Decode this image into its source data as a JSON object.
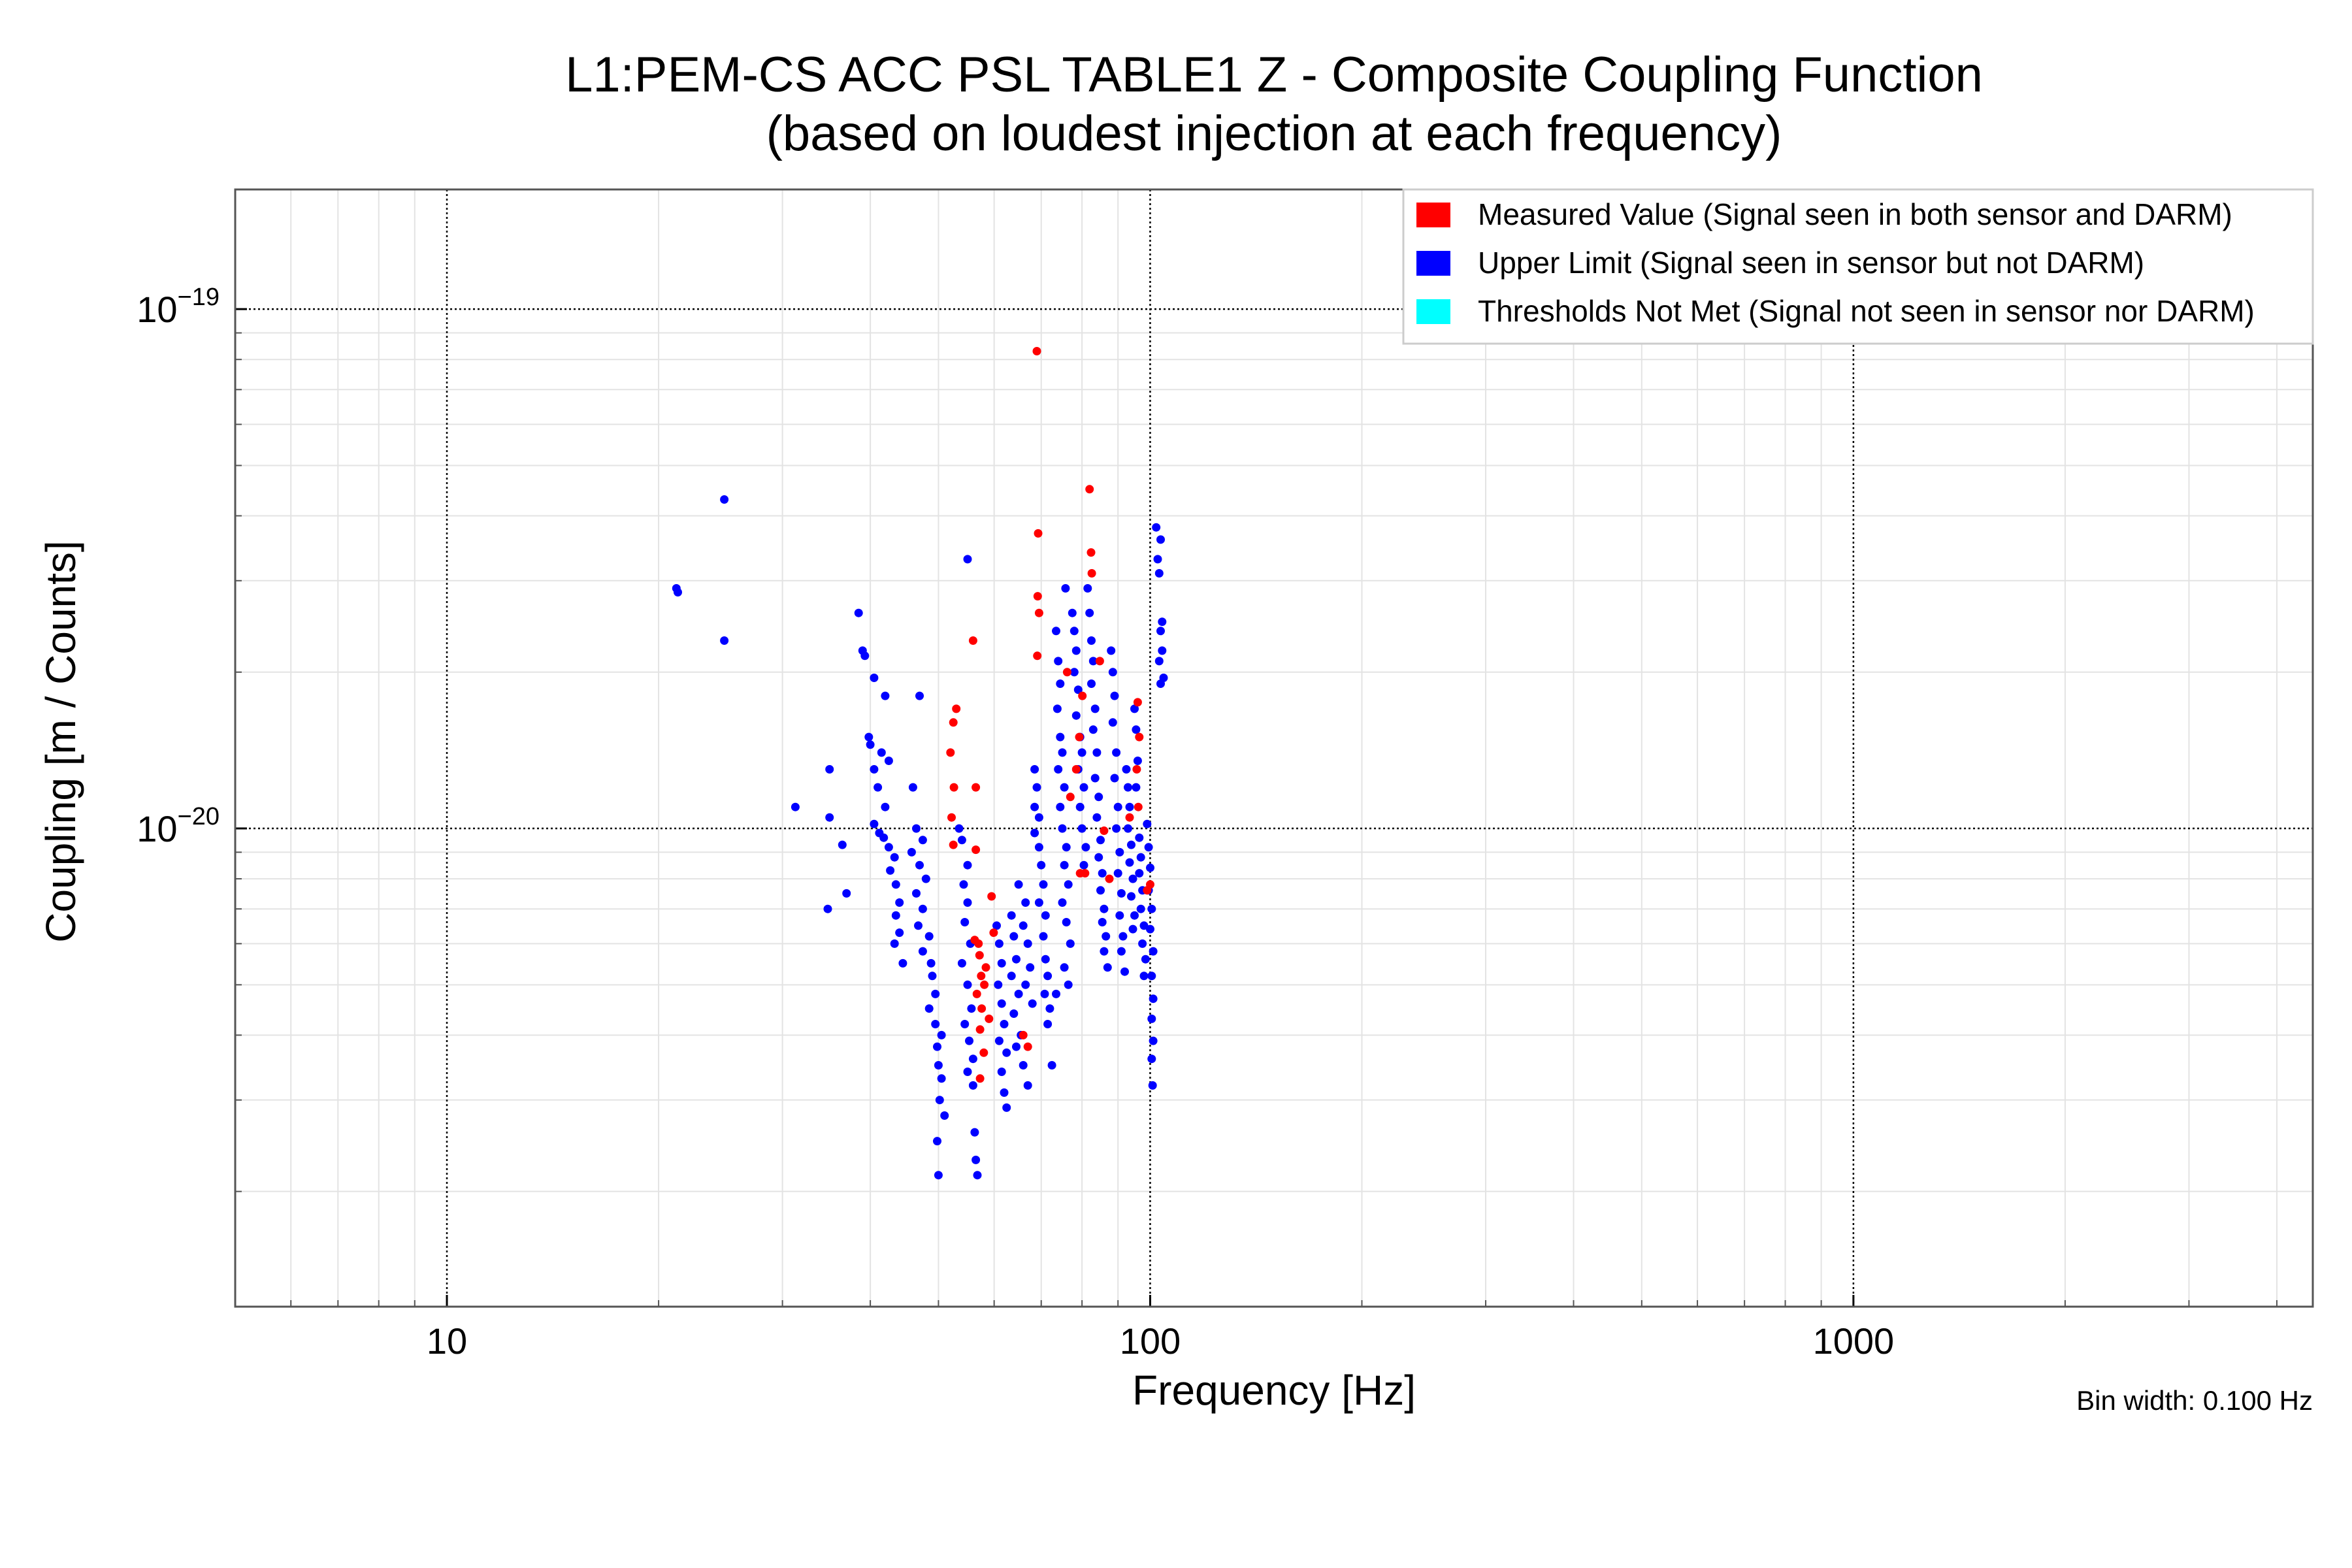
{
  "chart_data": {
    "type": "scatter",
    "title": "L1:PEM-CS ACC PSL TABLE1 Z - Composite Coupling Function",
    "subtitle": "(based on loudest injection at each frequency)",
    "xlabel": "Frequency [Hz]",
    "ylabel": "Coupling [m / Counts]",
    "xscale": "log",
    "yscale": "log",
    "xlim": [
      5,
      4500
    ],
    "ylim": [
      1.2e-21,
      1.7e-19
    ],
    "x_ticks": [
      10,
      100,
      1000
    ],
    "x_tick_labels": [
      "10",
      "100",
      "1000"
    ],
    "y_ticks": [
      1e-20,
      1e-19
    ],
    "y_tick_labels": [
      {
        "base": "10",
        "exp": "−20"
      },
      {
        "base": "10",
        "exp": "−19"
      }
    ],
    "grid": true,
    "legend_position": "top-right",
    "legend": [
      {
        "label": "Measured Value (Signal seen in both sensor and DARM)",
        "color": "#ff0000"
      },
      {
        "label": "Upper Limit (Signal seen in sensor but not DARM)",
        "color": "#0000ff"
      },
      {
        "label": "Thresholds Not Met (Signal not seen in sensor nor DARM)",
        "color": "#00ffff"
      }
    ],
    "annotation": "Bin width: 0.100 Hz",
    "series": [
      {
        "color": "#ff0000",
        "points": [
          [
            69.0,
            8.3e-20
          ],
          [
            82.0,
            4.5e-20
          ],
          [
            69.3,
            3.7e-20
          ],
          [
            82.4,
            3.4e-20
          ],
          [
            82.6,
            3.1e-20
          ],
          [
            69.2,
            2.8e-20
          ],
          [
            69.5,
            2.6e-20
          ],
          [
            56.0,
            2.3e-20
          ],
          [
            69.1,
            2.15e-20
          ],
          [
            76.2,
            2e-20
          ],
          [
            84.8,
            2.1e-20
          ],
          [
            80.1,
            1.8e-20
          ],
          [
            96.0,
            1.75e-20
          ],
          [
            53.0,
            1.7e-20
          ],
          [
            52.5,
            1.6e-20
          ],
          [
            96.5,
            1.5e-20
          ],
          [
            79.3,
            1.5e-20
          ],
          [
            52.0,
            1.4e-20
          ],
          [
            95.7,
            1.3e-20
          ],
          [
            78.5,
            1.3e-20
          ],
          [
            52.6,
            1.2e-20
          ],
          [
            56.5,
            1.2e-20
          ],
          [
            77.0,
            1.15e-20
          ],
          [
            96.2,
            1.1e-20
          ],
          [
            52.2,
            1.05e-20
          ],
          [
            86.0,
            9.9e-21
          ],
          [
            93.5,
            1.05e-20
          ],
          [
            52.5,
            9.3e-21
          ],
          [
            56.5,
            9.1e-21
          ],
          [
            59.5,
            7.4e-21
          ],
          [
            79.5,
            8.2e-21
          ],
          [
            80.8,
            8.2e-21
          ],
          [
            87.5,
            8e-21
          ],
          [
            99.0,
            7.6e-21
          ],
          [
            100.0,
            7.8e-21
          ],
          [
            59.9,
            6.3e-21
          ],
          [
            56.3,
            6.1e-21
          ],
          [
            57.0,
            6e-21
          ],
          [
            57.2,
            5.7e-21
          ],
          [
            58.4,
            5.4e-21
          ],
          [
            57.5,
            5.2e-21
          ],
          [
            58.1,
            5e-21
          ],
          [
            56.7,
            4.8e-21
          ],
          [
            57.6,
            4.5e-21
          ],
          [
            59.0,
            4.3e-21
          ],
          [
            57.3,
            4.1e-21
          ],
          [
            66.0,
            4e-21
          ],
          [
            58.0,
            3.7e-21
          ],
          [
            67.0,
            3.8e-21
          ],
          [
            57.3,
            3.3e-21
          ]
        ]
      },
      {
        "color": "#0000ff",
        "points": [
          [
            24.8,
            4.3e-20
          ],
          [
            21.2,
            2.9e-20
          ],
          [
            21.3,
            2.85e-20
          ],
          [
            24.8,
            2.3e-20
          ],
          [
            38.5,
            2.6e-20
          ],
          [
            39.0,
            2.2e-20
          ],
          [
            39.3,
            2.15e-20
          ],
          [
            40.5,
            1.95e-20
          ],
          [
            42.0,
            1.8e-20
          ],
          [
            39.8,
            1.5e-20
          ],
          [
            40.0,
            1.45e-20
          ],
          [
            41.5,
            1.4e-20
          ],
          [
            42.5,
            1.35e-20
          ],
          [
            40.5,
            1.3e-20
          ],
          [
            35.0,
            1.3e-20
          ],
          [
            41.0,
            1.2e-20
          ],
          [
            42.0,
            1.1e-20
          ],
          [
            31.3,
            1.1e-20
          ],
          [
            35.0,
            1.05e-20
          ],
          [
            40.5,
            1.02e-20
          ],
          [
            41.2,
            9.8e-21
          ],
          [
            41.8,
            9.6e-21
          ],
          [
            42.5,
            9.2e-21
          ],
          [
            43.3,
            8.8e-21
          ],
          [
            36.5,
            9.3e-21
          ],
          [
            42.7,
            8.3e-21
          ],
          [
            43.5,
            7.8e-21
          ],
          [
            44.0,
            7.2e-21
          ],
          [
            37.0,
            7.5e-21
          ],
          [
            34.8,
            7e-21
          ],
          [
            43.5,
            6.8e-21
          ],
          [
            44.0,
            6.3e-21
          ],
          [
            43.3,
            6e-21
          ],
          [
            44.5,
            5.5e-21
          ],
          [
            47.0,
            1.8e-20
          ],
          [
            46.0,
            1.2e-20
          ],
          [
            46.5,
            1e-20
          ],
          [
            47.5,
            9.5e-21
          ],
          [
            45.8,
            9e-21
          ],
          [
            47.0,
            8.5e-21
          ],
          [
            48.0,
            8e-21
          ],
          [
            46.5,
            7.5e-21
          ],
          [
            47.5,
            7e-21
          ],
          [
            46.8,
            6.5e-21
          ],
          [
            48.5,
            6.2e-21
          ],
          [
            47.5,
            5.8e-21
          ],
          [
            48.8,
            5.5e-21
          ],
          [
            49.0,
            5.2e-21
          ],
          [
            49.5,
            4.8e-21
          ],
          [
            48.5,
            4.5e-21
          ],
          [
            49.5,
            4.2e-21
          ],
          [
            50.5,
            4e-21
          ],
          [
            49.8,
            3.8e-21
          ],
          [
            50.0,
            3.5e-21
          ],
          [
            50.5,
            3.3e-21
          ],
          [
            50.2,
            3e-21
          ],
          [
            51.0,
            2.8e-21
          ],
          [
            49.8,
            2.5e-21
          ],
          [
            50.0,
            2.15e-21
          ],
          [
            55.0,
            3.3e-20
          ],
          [
            53.5,
            1e-20
          ],
          [
            54.0,
            9.5e-21
          ],
          [
            55.0,
            8.5e-21
          ],
          [
            54.3,
            7.8e-21
          ],
          [
            55.0,
            7.2e-21
          ],
          [
            54.5,
            6.6e-21
          ],
          [
            55.5,
            6e-21
          ],
          [
            54.0,
            5.5e-21
          ],
          [
            55.0,
            5e-21
          ],
          [
            55.7,
            4.5e-21
          ],
          [
            54.5,
            4.2e-21
          ],
          [
            55.3,
            3.9e-21
          ],
          [
            56.0,
            3.6e-21
          ],
          [
            55.0,
            3.4e-21
          ],
          [
            56.0,
            3.2e-21
          ],
          [
            56.3,
            2.6e-21
          ],
          [
            56.5,
            2.3e-21
          ],
          [
            56.8,
            2.15e-21
          ],
          [
            60.5,
            6.5e-21
          ],
          [
            61.0,
            6e-21
          ],
          [
            61.5,
            5.5e-21
          ],
          [
            60.8,
            5e-21
          ],
          [
            61.5,
            4.6e-21
          ],
          [
            62.0,
            4.2e-21
          ],
          [
            61.0,
            3.9e-21
          ],
          [
            62.5,
            3.7e-21
          ],
          [
            61.5,
            3.4e-21
          ],
          [
            62.0,
            3.1e-21
          ],
          [
            62.5,
            2.9e-21
          ],
          [
            63.5,
            6.8e-21
          ],
          [
            64.0,
            6.2e-21
          ],
          [
            64.5,
            5.6e-21
          ],
          [
            63.5,
            5.2e-21
          ],
          [
            65.0,
            4.8e-21
          ],
          [
            64.0,
            4.4e-21
          ],
          [
            65.5,
            4e-21
          ],
          [
            64.5,
            3.8e-21
          ],
          [
            66.0,
            3.5e-21
          ],
          [
            65.0,
            7.8e-21
          ],
          [
            66.5,
            7.2e-21
          ],
          [
            66.0,
            6.5e-21
          ],
          [
            67.0,
            6e-21
          ],
          [
            67.5,
            5.4e-21
          ],
          [
            66.5,
            5e-21
          ],
          [
            68.0,
            4.6e-21
          ],
          [
            67.0,
            3.2e-21
          ],
          [
            68.5,
            1.3e-20
          ],
          [
            69.0,
            1.2e-20
          ],
          [
            68.5,
            1.1e-20
          ],
          [
            69.5,
            1.05e-20
          ],
          [
            68.5,
            9.8e-21
          ],
          [
            69.5,
            9.2e-21
          ],
          [
            70.0,
            8.5e-21
          ],
          [
            70.5,
            7.8e-21
          ],
          [
            69.5,
            7.2e-21
          ],
          [
            71.0,
            6.8e-21
          ],
          [
            70.5,
            6.2e-21
          ],
          [
            71.0,
            5.6e-21
          ],
          [
            71.5,
            5.2e-21
          ],
          [
            70.8,
            4.8e-21
          ],
          [
            72.0,
            4.5e-21
          ],
          [
            71.5,
            4.2e-21
          ],
          [
            72.5,
            3.5e-21
          ],
          [
            73.5,
            2.4e-20
          ],
          [
            74.0,
            2.1e-20
          ],
          [
            74.5,
            1.9e-20
          ],
          [
            73.8,
            1.7e-20
          ],
          [
            74.5,
            1.5e-20
          ],
          [
            75.0,
            1.4e-20
          ],
          [
            74.0,
            1.3e-20
          ],
          [
            75.5,
            1.2e-20
          ],
          [
            74.5,
            1.1e-20
          ],
          [
            75.0,
            1e-20
          ],
          [
            76.0,
            9.2e-21
          ],
          [
            75.5,
            8.5e-21
          ],
          [
            76.5,
            7.8e-21
          ],
          [
            75.0,
            7.2e-21
          ],
          [
            76.0,
            6.6e-21
          ],
          [
            77.0,
            6e-21
          ],
          [
            75.5,
            5.4e-21
          ],
          [
            76.5,
            5e-21
          ],
          [
            73.5,
            4.8e-21
          ],
          [
            75.8,
            2.9e-20
          ],
          [
            77.5,
            2.6e-20
          ],
          [
            78.0,
            2.4e-20
          ],
          [
            78.5,
            2.2e-20
          ],
          [
            78.0,
            2e-20
          ],
          [
            79.0,
            1.85e-20
          ],
          [
            78.5,
            1.65e-20
          ],
          [
            79.5,
            1.5e-20
          ],
          [
            80.0,
            1.4e-20
          ],
          [
            79.0,
            1.3e-20
          ],
          [
            80.5,
            1.2e-20
          ],
          [
            79.5,
            1.1e-20
          ],
          [
            80.0,
            1e-20
          ],
          [
            81.0,
            9.2e-21
          ],
          [
            80.5,
            8.5e-21
          ],
          [
            81.5,
            2.9e-20
          ],
          [
            82.0,
            2.6e-20
          ],
          [
            82.5,
            2.3e-20
          ],
          [
            83.0,
            2.1e-20
          ],
          [
            82.5,
            1.9e-20
          ],
          [
            83.5,
            1.7e-20
          ],
          [
            83.0,
            1.55e-20
          ],
          [
            84.0,
            1.4e-20
          ],
          [
            83.5,
            1.25e-20
          ],
          [
            84.5,
            1.15e-20
          ],
          [
            84.0,
            1.05e-20
          ],
          [
            85.0,
            9.5e-21
          ],
          [
            84.5,
            8.8e-21
          ],
          [
            85.5,
            8.2e-21
          ],
          [
            85.0,
            7.6e-21
          ],
          [
            86.0,
            7e-21
          ],
          [
            85.5,
            6.6e-21
          ],
          [
            86.5,
            6.2e-21
          ],
          [
            86.0,
            5.8e-21
          ],
          [
            87.0,
            5.4e-21
          ],
          [
            88.0,
            2.2e-20
          ],
          [
            88.5,
            2e-20
          ],
          [
            89.0,
            1.8e-20
          ],
          [
            88.5,
            1.6e-20
          ],
          [
            89.5,
            1.4e-20
          ],
          [
            89.0,
            1.25e-20
          ],
          [
            90.0,
            1.1e-20
          ],
          [
            89.5,
            1e-20
          ],
          [
            90.5,
            9e-21
          ],
          [
            90.0,
            8.2e-21
          ],
          [
            91.0,
            7.5e-21
          ],
          [
            90.5,
            6.8e-21
          ],
          [
            91.5,
            6.2e-21
          ],
          [
            91.0,
            5.8e-21
          ],
          [
            92.0,
            5.3e-21
          ],
          [
            92.5,
            1.3e-20
          ],
          [
            93.0,
            1.2e-20
          ],
          [
            93.5,
            1.1e-20
          ],
          [
            93.0,
            1e-20
          ],
          [
            94.0,
            9.3e-21
          ],
          [
            93.5,
            8.6e-21
          ],
          [
            94.5,
            8e-21
          ],
          [
            94.0,
            7.4e-21
          ],
          [
            95.0,
            6.8e-21
          ],
          [
            94.5,
            6.4e-21
          ],
          [
            95.0,
            1.7e-20
          ],
          [
            95.5,
            1.55e-20
          ],
          [
            96.0,
            1.35e-20
          ],
          [
            95.5,
            1.2e-20
          ],
          [
            96.5,
            9.6e-21
          ],
          [
            97.0,
            8.8e-21
          ],
          [
            96.5,
            8.2e-21
          ],
          [
            97.5,
            7.6e-21
          ],
          [
            97.0,
            7e-21
          ],
          [
            98.0,
            6.5e-21
          ],
          [
            97.5,
            6e-21
          ],
          [
            98.5,
            5.6e-21
          ],
          [
            98.0,
            5.2e-21
          ],
          [
            99.0,
            1.02e-20
          ],
          [
            99.5,
            9.2e-21
          ],
          [
            100.0,
            8.4e-21
          ],
          [
            99.5,
            7.6e-21
          ],
          [
            100.5,
            7e-21
          ],
          [
            100.0,
            6.4e-21
          ],
          [
            101.0,
            5.8e-21
          ],
          [
            100.5,
            5.2e-21
          ],
          [
            101.0,
            4.7e-21
          ],
          [
            100.5,
            4.3e-21
          ],
          [
            101.0,
            3.9e-21
          ],
          [
            100.5,
            3.6e-21
          ],
          [
            100.8,
            3.2e-21
          ],
          [
            102.0,
            3.8e-20
          ],
          [
            102.5,
            3.3e-20
          ],
          [
            103.5,
            3.6e-20
          ],
          [
            103.0,
            3.1e-20
          ],
          [
            104.0,
            2.5e-20
          ],
          [
            103.5,
            2.4e-20
          ],
          [
            104.0,
            2.2e-20
          ],
          [
            103.0,
            2.1e-20
          ],
          [
            104.5,
            1.95e-20
          ],
          [
            103.5,
            1.9e-20
          ]
        ]
      }
    ]
  }
}
